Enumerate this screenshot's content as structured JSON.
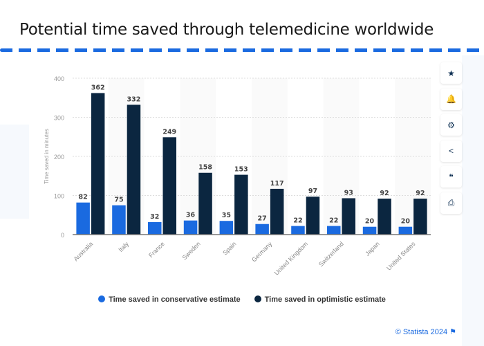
{
  "title": "Potential time saved through telemedicine worldwide",
  "tools": [
    {
      "icon": "star-icon",
      "glyph": "★"
    },
    {
      "icon": "bell-icon",
      "glyph": "🔔"
    },
    {
      "icon": "gear-icon",
      "glyph": "⚙"
    },
    {
      "icon": "share-icon",
      "glyph": "<"
    },
    {
      "icon": "quote-icon",
      "glyph": "❝"
    },
    {
      "icon": "print-icon",
      "glyph": "⎙"
    }
  ],
  "credit": "© Statista 2024",
  "chart_data": {
    "type": "bar",
    "title": "Potential time saved through telemedicine worldwide",
    "ylabel": "Time saved in minutes",
    "ylim": [
      0,
      400
    ],
    "yticks": [
      0,
      100,
      200,
      300,
      400
    ],
    "grid": true,
    "legend_placement": "bottom",
    "categories": [
      "Australia",
      "Italy",
      "France",
      "Sweden",
      "Spain",
      "Germany",
      "United Kingdom",
      "Switzerland",
      "Japan",
      "United States"
    ],
    "series": [
      {
        "name": "Time saved in conservative estimate",
        "color": "#1a6ae0",
        "values": [
          82,
          75,
          32,
          36,
          35,
          27,
          22,
          22,
          20,
          20
        ]
      },
      {
        "name": "Time saved in optimistic estimate",
        "color": "#0b2640",
        "values": [
          362,
          332,
          249,
          158,
          153,
          117,
          97,
          93,
          92,
          92
        ]
      }
    ]
  }
}
